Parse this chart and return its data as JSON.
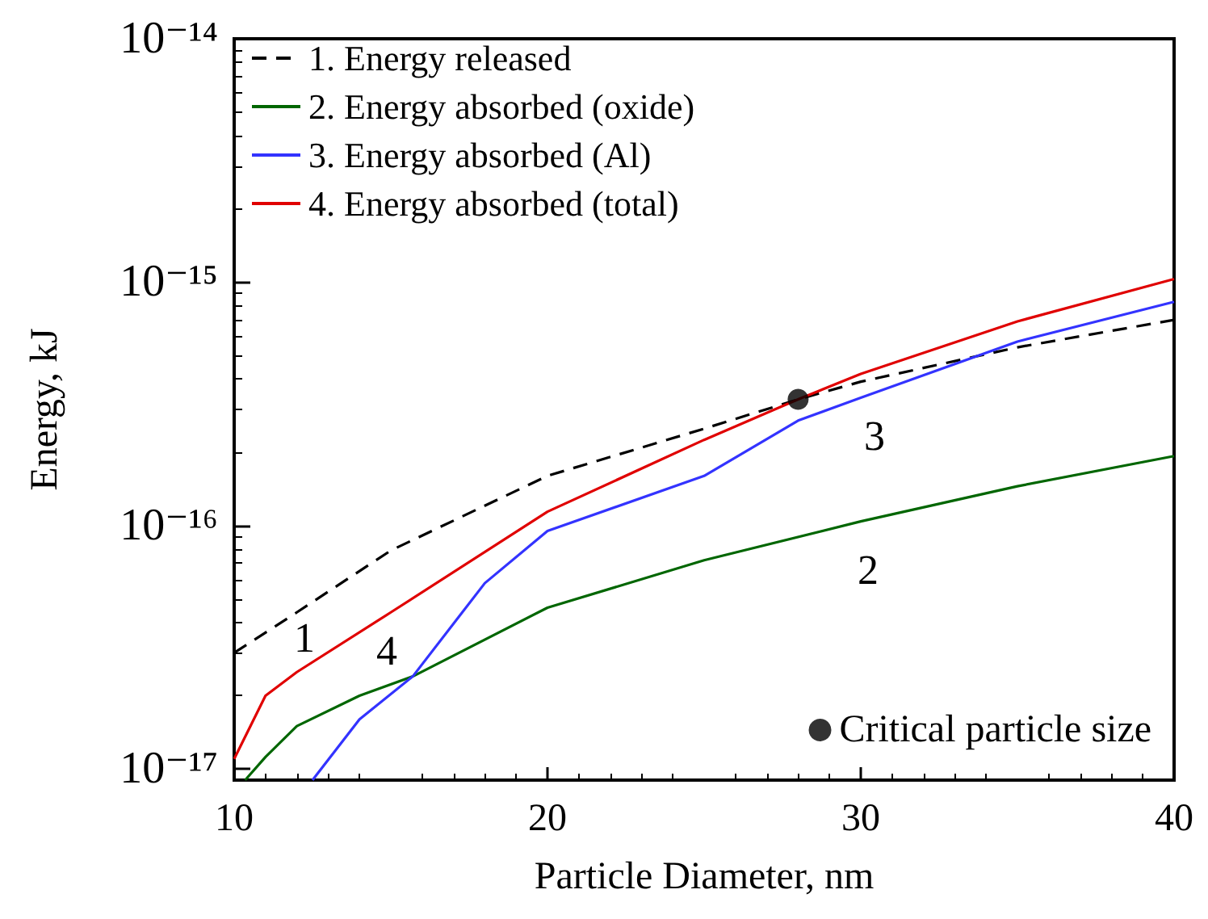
{
  "chart_data": {
    "type": "line",
    "xlabel": "Particle Diameter, nm",
    "ylabel": "Energy, kJ",
    "xlim": [
      10,
      40
    ],
    "xticks": [
      10,
      20,
      30,
      40
    ],
    "ylim": [
      9e-18,
      1e-14
    ],
    "log": "y",
    "yticks": [
      {
        "value": 1e-17,
        "label": "10⁻¹⁷"
      },
      {
        "value": 1e-16,
        "label": "10⁻¹⁶"
      },
      {
        "value": 1e-15,
        "label": "10⁻¹⁵"
      },
      {
        "value": 1e-14,
        "label": "10⁻¹⁴"
      }
    ],
    "grid": false,
    "legend": "top left",
    "marker": "none",
    "series": [
      {
        "name": "1. Energy released",
        "color": "#000000",
        "line_style": "dashed",
        "x": [
          10,
          12,
          15,
          20,
          25,
          28,
          30,
          35,
          40
        ],
        "values": [
          3e-17,
          4.4e-17,
          7.9e-17,
          1.6e-16,
          2.5e-16,
          3.3e-16,
          3.9e-16,
          5.4e-16,
          7e-16
        ]
      },
      {
        "name": "2. Energy absorbed (oxide)",
        "color": "#006600",
        "x": [
          10.35,
          11,
          12,
          14,
          15.7,
          20,
          25,
          30,
          35,
          40
        ],
        "values": [
          9e-18,
          1.12e-17,
          1.5e-17,
          2e-17,
          2.4e-17,
          4.6e-17,
          7.2e-17,
          1.04e-16,
          1.45e-16,
          1.93e-16
        ]
      },
      {
        "name": "3. Energy absorbed (Al)",
        "color": "#3333ff",
        "x": [
          12.5,
          14,
          15.7,
          18,
          20,
          25,
          28,
          30,
          35,
          40
        ],
        "values": [
          9e-18,
          1.6e-17,
          2.4e-17,
          5.8e-17,
          9.5e-17,
          1.6e-16,
          2.7e-16,
          3.35e-16,
          5.7e-16,
          8.3e-16
        ]
      },
      {
        "name": "4. Energy absorbed (total)",
        "color": "#e00000",
        "x": [
          10,
          11,
          12,
          15,
          20,
          25,
          28,
          30,
          35,
          40
        ],
        "values": [
          1.1e-17,
          2e-17,
          2.5e-17,
          4.4e-17,
          1.14e-16,
          2.25e-16,
          3.3e-16,
          4.2e-16,
          6.9e-16,
          1.03e-15
        ]
      },
      {
        "name": "Critical particle size",
        "type": "scatter",
        "marker": "circle",
        "color": "#000000",
        "x": [
          28
        ],
        "values": [
          3.3e-16
        ]
      }
    ],
    "annotations": [
      "1",
      "4",
      "3",
      "2"
    ]
  }
}
